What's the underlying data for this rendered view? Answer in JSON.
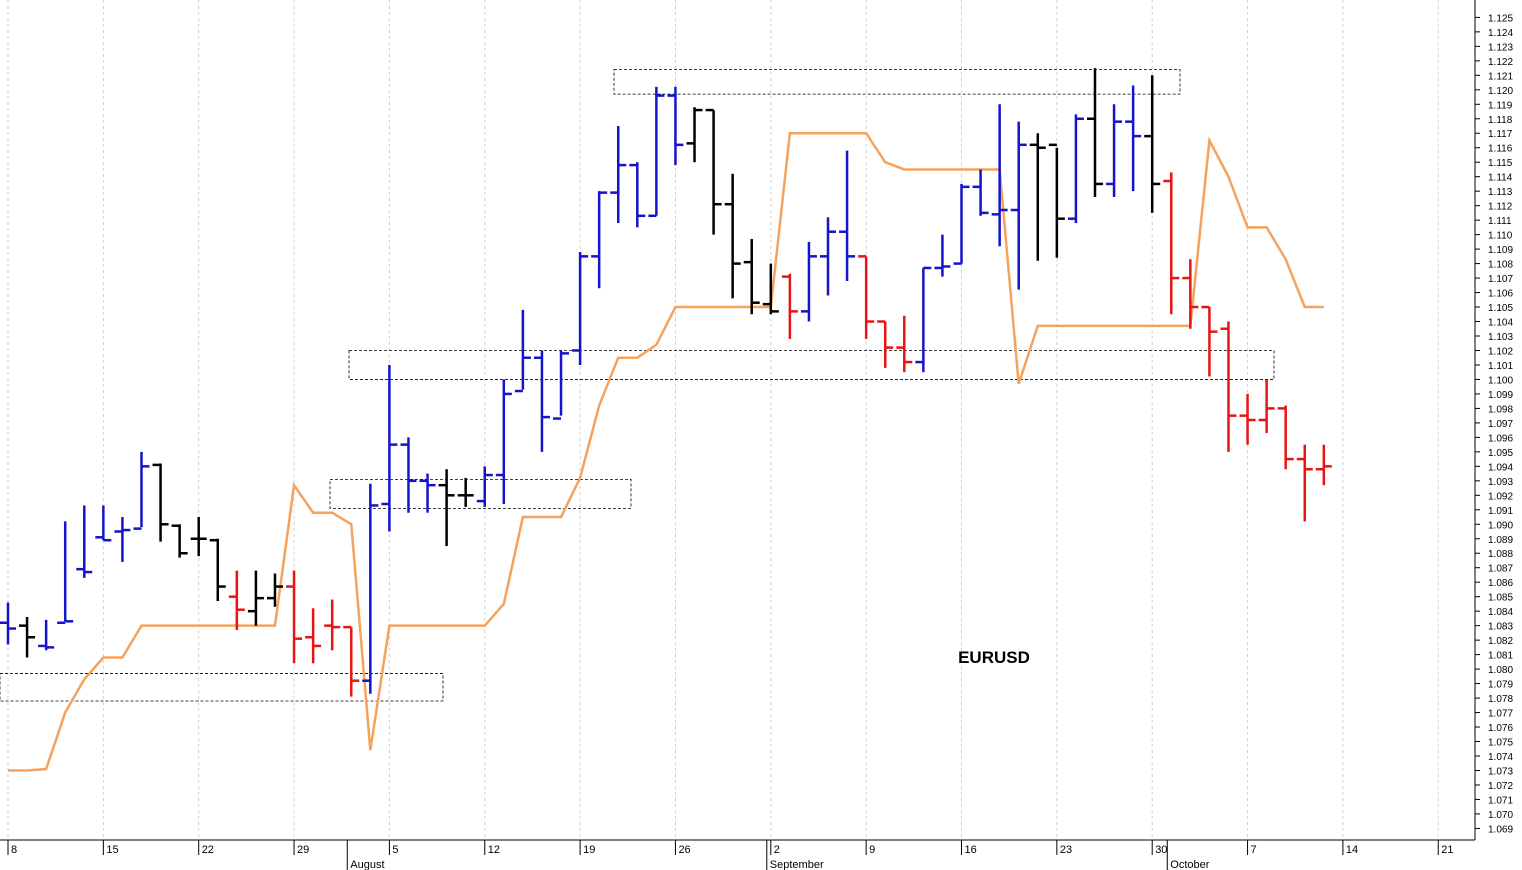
{
  "chart_data": {
    "type": "ohlc",
    "annotation": "EURUSD",
    "categories": [
      "8",
      null,
      null,
      null,
      null,
      "15",
      null,
      null,
      null,
      null,
      "22",
      null,
      null,
      null,
      null,
      "29",
      null,
      null,
      null,
      null,
      "5",
      null,
      null,
      null,
      null,
      "12",
      null,
      null,
      null,
      null,
      "19",
      null,
      null,
      null,
      null,
      "26",
      null,
      null,
      null,
      null,
      "2",
      null,
      null,
      null,
      null,
      "9",
      null,
      null,
      null,
      null,
      "16",
      null,
      null,
      null,
      null,
      "23",
      null,
      null,
      null,
      null,
      "30",
      null,
      null,
      null,
      null,
      "7",
      null,
      null,
      null,
      null,
      "14",
      null,
      null,
      null,
      null,
      "21",
      null,
      null
    ],
    "month_labels": [
      null,
      null,
      null,
      null,
      null,
      null,
      null,
      null,
      null,
      null,
      null,
      null,
      null,
      null,
      null,
      null,
      null,
      null,
      "August",
      null,
      null,
      null,
      null,
      null,
      null,
      null,
      null,
      null,
      null,
      null,
      null,
      null,
      null,
      null,
      null,
      null,
      null,
      null,
      null,
      null,
      "September",
      null,
      null,
      null,
      null,
      null,
      null,
      null,
      null,
      null,
      null,
      null,
      null,
      null,
      null,
      null,
      null,
      null,
      null,
      null,
      null,
      "October",
      null,
      null,
      null,
      null,
      null,
      null,
      null,
      null,
      null,
      null,
      null,
      null,
      null,
      null,
      null,
      null
    ],
    "open": [
      1.0832,
      1.083,
      1.0816,
      1.0832,
      1.0869,
      1.0891,
      1.0895,
      1.0897,
      1.0941,
      1.0899,
      1.089,
      1.0889,
      1.085,
      1.084,
      1.0849,
      1.0857,
      1.0822,
      1.083,
      1.0829,
      1.0792,
      1.0914,
      1.0955,
      1.093,
      1.0927,
      1.092,
      1.0916,
      1.0934,
      1.0992,
      1.1015,
      1.0973,
      1.102,
      1.1085,
      1.1129,
      1.1148,
      1.1113,
      1.1196,
      1.1163,
      1.1186,
      1.1121,
      1.1081,
      1.1052,
      1.1071,
      1.1047,
      1.1085,
      1.1102,
      1.1085,
      1.104,
      1.1022,
      1.1012,
      1.1077,
      1.108,
      1.1133,
      1.1114,
      1.1117,
      1.1162,
      1.1162,
      1.1111,
      1.118,
      1.1135,
      1.1178,
      1.1168,
      1.1137,
      1.107,
      1.105,
      1.1035,
      1.0975,
      1.0972,
      1.098,
      1.0945,
      1.0938,
      null,
      null,
      null,
      null,
      null,
      null,
      null,
      null
    ],
    "high": [
      1.0846,
      1.0836,
      1.0834,
      1.0902,
      1.0913,
      1.0913,
      1.0905,
      1.095,
      1.0942,
      1.09,
      1.0905,
      1.089,
      1.0868,
      1.0868,
      1.0866,
      1.0868,
      1.0842,
      1.0848,
      1.0829,
      1.0928,
      1.101,
      1.096,
      1.0935,
      1.0938,
      1.0932,
      1.094,
      1.1,
      1.1048,
      1.102,
      1.102,
      1.1088,
      1.113,
      1.1175,
      1.115,
      1.1202,
      1.1202,
      1.1188,
      1.1186,
      1.1142,
      1.1097,
      1.108,
      1.1073,
      1.1095,
      1.1112,
      1.1158,
      1.1085,
      1.104,
      1.1044,
      1.1077,
      1.11,
      1.1135,
      1.1145,
      1.119,
      1.1178,
      1.117,
      1.116,
      1.1183,
      1.1215,
      1.119,
      1.1203,
      1.121,
      1.1143,
      1.1083,
      1.105,
      1.104,
      1.099,
      1.1,
      1.0982,
      1.0955,
      1.0955,
      null,
      null,
      null,
      null,
      null,
      null,
      null,
      null
    ],
    "low": [
      1.0817,
      1.0808,
      1.0813,
      1.0833,
      1.0863,
      1.0889,
      1.0874,
      1.0898,
      1.0888,
      1.0877,
      1.0878,
      1.0847,
      1.0827,
      1.083,
      1.0843,
      1.0804,
      1.0804,
      1.0813,
      1.0781,
      1.0783,
      1.0895,
      1.0908,
      1.0908,
      1.0885,
      1.0912,
      1.0912,
      1.0914,
      1.0993,
      1.095,
      1.0975,
      1.101,
      1.1063,
      1.1108,
      1.1105,
      1.1113,
      1.1148,
      1.115,
      1.11,
      1.1056,
      1.1045,
      1.1045,
      1.1028,
      1.104,
      1.1058,
      1.1068,
      1.1028,
      1.1008,
      1.1005,
      1.1005,
      1.1071,
      1.108,
      1.1113,
      1.1092,
      1.1062,
      1.1082,
      1.1084,
      1.1108,
      1.1126,
      1.1126,
      1.113,
      1.1115,
      1.1045,
      1.1035,
      1.1002,
      1.095,
      1.0955,
      1.0963,
      1.0938,
      1.0902,
      1.0927,
      null,
      null,
      null,
      null,
      null,
      null,
      null,
      null
    ],
    "close": [
      1.0828,
      1.0822,
      1.0815,
      1.0833,
      1.0867,
      1.0889,
      1.0896,
      1.094,
      1.09,
      1.088,
      1.089,
      1.0857,
      1.0841,
      1.0849,
      1.0857,
      1.0821,
      1.0816,
      1.0829,
      1.0792,
      1.0913,
      1.0955,
      1.093,
      1.0927,
      1.092,
      1.092,
      1.0934,
      1.099,
      1.1015,
      1.0974,
      1.1018,
      1.1085,
      1.1129,
      1.1148,
      1.1113,
      1.1196,
      1.1162,
      1.1186,
      1.1121,
      1.108,
      1.1053,
      1.1047,
      1.1047,
      1.1085,
      1.1102,
      1.1085,
      1.104,
      1.1022,
      1.1012,
      1.1077,
      1.1078,
      1.1133,
      1.1115,
      1.1117,
      1.1162,
      1.116,
      1.1111,
      1.118,
      1.1135,
      1.1178,
      1.1168,
      1.1135,
      1.107,
      1.105,
      1.1033,
      1.0975,
      1.0972,
      1.098,
      1.0945,
      1.0938,
      1.094,
      null,
      null,
      null,
      null,
      null,
      null,
      null,
      null
    ],
    "colors": [
      "#1414c8",
      "#000000",
      "#1414c8",
      "#1414c8",
      "#1414c8",
      "#1414c8",
      "#1414c8",
      "#1414c8",
      "#000000",
      "#000000",
      "#000000",
      "#000000",
      "#e81414",
      "#000000",
      "#000000",
      "#e81414",
      "#e81414",
      "#e81414",
      "#e81414",
      "#1414c8",
      "#1414c8",
      "#1414c8",
      "#1414c8",
      "#000000",
      "#000000",
      "#1414c8",
      "#1414c8",
      "#1414c8",
      "#1414c8",
      "#1414c8",
      "#1414c8",
      "#1414c8",
      "#1414c8",
      "#1414c8",
      "#1414c8",
      "#1414c8",
      "#000000",
      "#000000",
      "#000000",
      "#000000",
      "#000000",
      "#e81414",
      "#1414c8",
      "#1414c8",
      "#1414c8",
      "#e81414",
      "#e81414",
      "#e81414",
      "#1414c8",
      "#1414c8",
      "#1414c8",
      "#1414c8",
      "#1414c8",
      "#1414c8",
      "#000000",
      "#000000",
      "#1414c8",
      "#000000",
      "#1414c8",
      "#1414c8",
      "#000000",
      "#e81414",
      "#e81414",
      "#e81414",
      "#e81414",
      "#e81414",
      "#e81414",
      "#e81414",
      "#e81414",
      "#e81414",
      null,
      null,
      null,
      null,
      null,
      null,
      null,
      null
    ],
    "line": {
      "color": "#f5a25d",
      "values": [
        1.073,
        1.073,
        1.0731,
        1.077,
        1.0793,
        1.0808,
        1.0808,
        1.083,
        1.083,
        1.083,
        1.083,
        1.083,
        1.083,
        1.083,
        1.083,
        1.0927,
        1.0908,
        1.0908,
        1.09,
        1.0744,
        1.083,
        1.083,
        1.083,
        1.083,
        1.083,
        1.083,
        1.0845,
        1.0905,
        1.0905,
        1.0905,
        1.0932,
        1.0982,
        1.1015,
        1.1015,
        1.1024,
        1.105,
        1.105,
        1.105,
        1.105,
        1.105,
        1.105,
        1.117,
        1.117,
        1.117,
        1.117,
        1.117,
        1.115,
        1.1145,
        1.1145,
        1.1145,
        1.1145,
        1.1145,
        1.1145,
        1.0997,
        1.1037,
        1.1037,
        1.1037,
        1.1037,
        1.1037,
        1.1037,
        1.1037,
        1.1037,
        1.1037,
        1.1165,
        1.114,
        1.1105,
        1.1105,
        1.1083,
        1.105,
        1.105,
        null,
        null,
        null,
        null,
        null,
        null,
        null,
        null
      ]
    },
    "zones": [
      {
        "low": 1.0778,
        "high": 1.0797
      },
      {
        "low": 1.0911,
        "high": 1.0931
      },
      {
        "low": 1.1,
        "high": 1.102
      },
      {
        "low": 1.1197,
        "high": 1.1214
      }
    ],
    "ylim": [
      1.0682,
      1.1262
    ],
    "yticks": [
      1.069,
      {
        "value": 1.07,
        "label": "1.070"
      },
      1.071,
      1.072,
      1.073,
      1.074,
      1.075,
      1.076,
      1.077,
      1.078,
      1.079,
      {
        "value": 1.08,
        "label": "1.080"
      },
      1.081,
      1.082,
      1.083,
      1.084,
      1.085,
      1.086,
      1.087,
      1.088,
      1.089,
      {
        "value": 1.09,
        "label": "1.090"
      },
      1.091,
      1.092,
      1.093,
      1.094,
      1.095,
      1.096,
      1.097,
      1.098,
      1.099,
      {
        "value": 1.1,
        "label": "1.100"
      },
      1.101,
      1.102,
      1.103,
      1.104,
      1.105,
      1.106,
      1.107,
      1.108,
      1.109,
      {
        "value": 1.11,
        "label": "1.110"
      },
      1.111,
      1.112,
      1.113,
      1.114,
      1.115,
      1.116,
      1.117,
      1.118,
      1.119,
      {
        "value": 1.12,
        "label": "1.120"
      },
      1.121,
      1.122,
      1.123,
      1.124,
      1.125
    ]
  }
}
